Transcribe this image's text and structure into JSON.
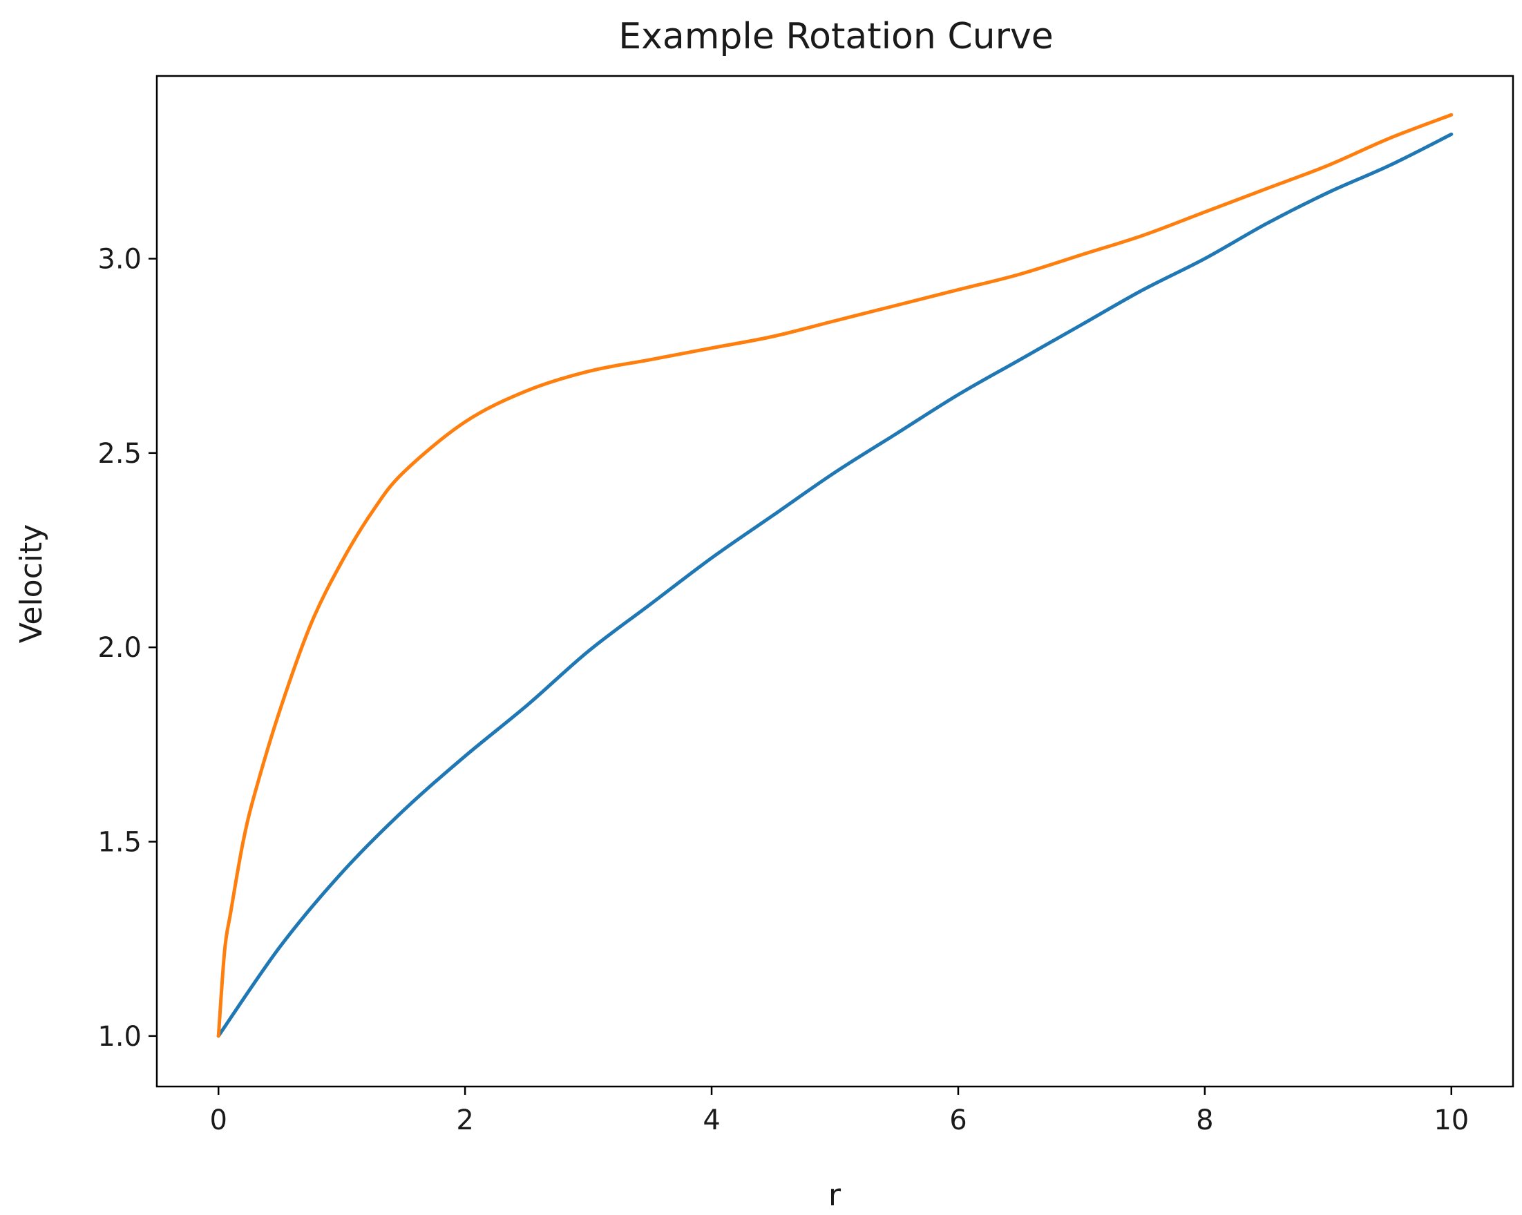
{
  "chart_data": {
    "type": "line",
    "title": "Example Rotation Curve",
    "xlabel": "r",
    "ylabel": "Velocity",
    "xlim": [
      -0.5,
      10.5
    ],
    "ylim": [
      0.87,
      3.47
    ],
    "xticks": [
      0,
      2,
      4,
      6,
      8,
      10
    ],
    "xtick_labels": [
      "0",
      "2",
      "4",
      "6",
      "8",
      "10"
    ],
    "yticks": [
      1.0,
      1.5,
      2.0,
      2.5,
      3.0
    ],
    "ytick_labels": [
      "1.0",
      "1.5",
      "2.0",
      "2.5",
      "3.0"
    ],
    "grid": false,
    "legend": "none",
    "series": [
      {
        "color": "#1f77b4",
        "x": [
          0,
          0.5,
          1,
          1.5,
          2,
          2.5,
          3,
          3.5,
          4,
          4.5,
          5,
          5.5,
          6,
          6.5,
          7,
          7.5,
          8,
          8.5,
          9,
          9.5,
          10
        ],
        "y": [
          1.0,
          1.23,
          1.42,
          1.58,
          1.72,
          1.85,
          1.99,
          2.11,
          2.23,
          2.34,
          2.45,
          2.55,
          2.65,
          2.74,
          2.83,
          2.92,
          3.0,
          3.09,
          3.17,
          3.24,
          3.32
        ]
      },
      {
        "color": "#ff7f0e",
        "x": [
          0,
          0.05,
          0.1,
          0.2,
          0.3,
          0.5,
          0.75,
          1,
          1.25,
          1.5,
          2,
          2.5,
          3,
          3.5,
          4,
          4.5,
          5,
          5.5,
          6,
          6.5,
          7,
          7.5,
          8,
          8.5,
          9,
          9.5,
          10
        ],
        "y": [
          1.0,
          1.22,
          1.32,
          1.5,
          1.63,
          1.84,
          2.06,
          2.22,
          2.35,
          2.45,
          2.58,
          2.66,
          2.71,
          2.74,
          2.77,
          2.8,
          2.84,
          2.88,
          2.92,
          2.96,
          3.01,
          3.06,
          3.12,
          3.18,
          3.24,
          3.31,
          3.37
        ]
      }
    ]
  }
}
